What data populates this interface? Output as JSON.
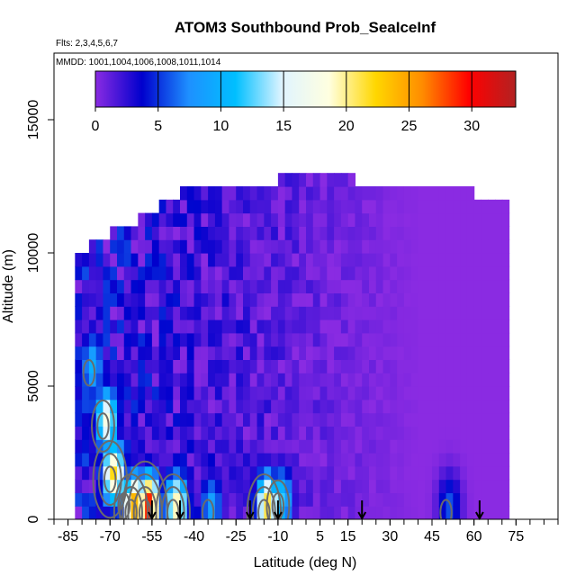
{
  "chart_data": {
    "type": "heatmap",
    "title": "ATOM3 Southbound Prob_SeaIceInf",
    "subtitle_flights": "Flts: 2,3,4,5,6,7",
    "subtitle_dates": "MMDD: 1001,1004,1006,1008,1011,1014",
    "xlabel": "Latitude (deg N)",
    "ylabel": "Altitude (m)",
    "xlim": [
      -90,
      90
    ],
    "ylim": [
      0,
      17500
    ],
    "x_ticks": [
      -85,
      -70,
      -55,
      -40,
      -25,
      -10,
      5,
      15,
      30,
      45,
      60,
      75
    ],
    "x_tick_labels": [
      "-85",
      "-70",
      "-55",
      "-40",
      "-25",
      "-10",
      "5",
      "15",
      "30",
      "45",
      "60",
      "75"
    ],
    "x_minor_step": 5,
    "y_ticks": [
      0,
      5000,
      10000,
      15000
    ],
    "y_tick_labels": [
      "0",
      "5000",
      "10000",
      "15000"
    ],
    "colorbar": {
      "min": 0,
      "max": 33.5,
      "ticks": [
        0,
        5,
        10,
        15,
        20,
        25,
        30
      ],
      "tick_labels": [
        "0",
        "5",
        "10",
        "15",
        "20",
        "25",
        "30"
      ],
      "colors": [
        "#8a2be2",
        "#0000cd",
        "#1e90ff",
        "#00bfff",
        "#e0f4ff",
        "#ffffe0",
        "#ffd700",
        "#ff8c00",
        "#ff0000",
        "#b22222"
      ]
    },
    "curtain": {
      "lat_bin_deg": 2.5,
      "alt_bin_m": 500,
      "top_profile": [
        {
          "lat": -82.5,
          "top": 10000
        },
        {
          "lat": -77.5,
          "top": 10500
        },
        {
          "lat": -70,
          "top": 11000
        },
        {
          "lat": -60,
          "top": 11500
        },
        {
          "lat": -52.5,
          "top": 12000
        },
        {
          "lat": -45,
          "top": 12500
        },
        {
          "lat": -10,
          "top": 13000
        },
        {
          "lat": 17.5,
          "top": 12500
        },
        {
          "lat": 60,
          "top": 12000
        },
        {
          "lat": 72.5,
          "top": 12000
        }
      ],
      "lat_min": -82.5,
      "lat_max": 72.5,
      "background_value": 0
    },
    "hotspots": [
      {
        "lat": -77.5,
        "alt": 5500,
        "value": 10
      },
      {
        "lat": -72.5,
        "alt": 3500,
        "value": 18
      },
      {
        "lat": -70,
        "alt": 1500,
        "value": 22
      },
      {
        "lat": -65,
        "alt": 500,
        "value": 8
      },
      {
        "lat": -62.5,
        "alt": 250,
        "value": 25
      },
      {
        "lat": -57.5,
        "alt": 250,
        "value": 30
      },
      {
        "lat": -47.5,
        "alt": 250,
        "value": 20
      },
      {
        "lat": -35,
        "alt": 250,
        "value": 9
      },
      {
        "lat": -15,
        "alt": 250,
        "value": 22
      },
      {
        "lat": -10,
        "alt": 500,
        "value": 12
      },
      {
        "lat": 50,
        "alt": 250,
        "value": 6
      }
    ],
    "arrows_lat": [
      -55,
      -45,
      -20,
      -10,
      20,
      62
    ]
  }
}
